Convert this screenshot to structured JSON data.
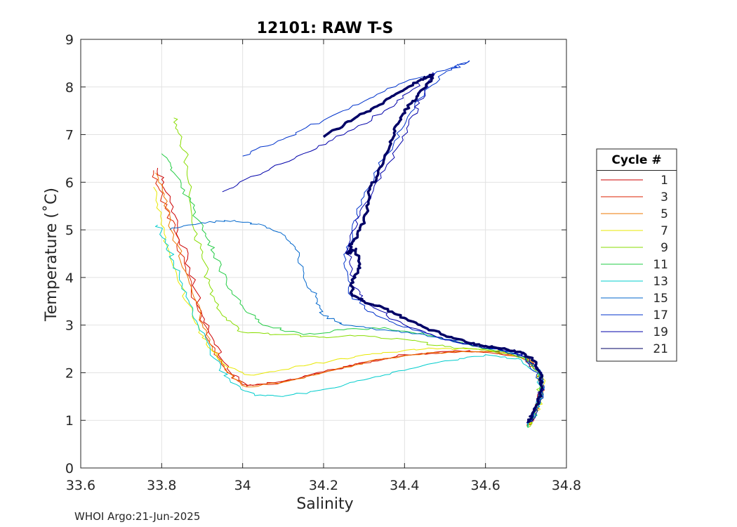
{
  "chart_data": {
    "type": "line",
    "title": "12101: RAW T-S",
    "xlabel": "Salinity",
    "ylabel": "Temperature (˚C)",
    "xlim": [
      33.6,
      34.8
    ],
    "ylim": [
      0,
      9
    ],
    "xticks": [
      33.6,
      33.8,
      34.0,
      34.2,
      34.4,
      34.6,
      34.8
    ],
    "xtick_labels": [
      "33.6",
      "33.8",
      "34",
      "34.2",
      "34.4",
      "34.6",
      "34.8"
    ],
    "yticks": [
      0,
      1,
      2,
      3,
      4,
      5,
      6,
      7,
      8,
      9
    ],
    "ytick_labels": [
      "0",
      "1",
      "2",
      "3",
      "4",
      "5",
      "6",
      "7",
      "8",
      "9"
    ],
    "grid": true,
    "legend_title": "Cycle #",
    "legend_position": "outside-right",
    "series": [
      {
        "name": "1",
        "color": "#cc0000",
        "width": 1,
        "points": [
          [
            33.79,
            6.3
          ],
          [
            33.81,
            5.8
          ],
          [
            33.84,
            5.0
          ],
          [
            33.87,
            4.2
          ],
          [
            33.9,
            3.2
          ],
          [
            33.93,
            2.6
          ],
          [
            33.97,
            2.0
          ],
          [
            34.01,
            1.72
          ],
          [
            34.1,
            1.82
          ],
          [
            34.2,
            2.02
          ],
          [
            34.3,
            2.22
          ],
          [
            34.4,
            2.38
          ],
          [
            34.52,
            2.45
          ],
          [
            34.62,
            2.44
          ],
          [
            34.7,
            2.3
          ],
          [
            34.735,
            2.0
          ],
          [
            34.74,
            1.7
          ],
          [
            34.725,
            1.3
          ],
          [
            34.71,
            0.9
          ]
        ]
      },
      {
        "name": "3",
        "color": "#dd2200",
        "width": 1,
        "points": [
          [
            33.78,
            6.25
          ],
          [
            33.8,
            5.7
          ],
          [
            33.83,
            5.0
          ],
          [
            33.86,
            4.1
          ],
          [
            33.89,
            3.3
          ],
          [
            33.92,
            2.6
          ],
          [
            33.96,
            2.05
          ],
          [
            34.0,
            1.75
          ],
          [
            34.08,
            1.76
          ],
          [
            34.18,
            1.98
          ],
          [
            34.3,
            2.2
          ],
          [
            34.4,
            2.36
          ],
          [
            34.5,
            2.43
          ],
          [
            34.6,
            2.43
          ],
          [
            34.69,
            2.32
          ],
          [
            34.73,
            2.05
          ],
          [
            34.74,
            1.7
          ],
          [
            34.72,
            1.2
          ],
          [
            34.705,
            0.9
          ]
        ]
      },
      {
        "name": "5",
        "color": "#ee7700",
        "width": 1,
        "points": [
          [
            33.785,
            6.2
          ],
          [
            33.805,
            5.7
          ],
          [
            33.83,
            4.9
          ],
          [
            33.865,
            4.0
          ],
          [
            33.895,
            3.2
          ],
          [
            33.925,
            2.55
          ],
          [
            33.965,
            2.0
          ],
          [
            34.01,
            1.7
          ],
          [
            34.1,
            1.8
          ],
          [
            34.22,
            2.05
          ],
          [
            34.33,
            2.28
          ],
          [
            34.45,
            2.4
          ],
          [
            34.55,
            2.44
          ],
          [
            34.64,
            2.42
          ],
          [
            34.71,
            2.25
          ],
          [
            34.74,
            1.9
          ],
          [
            34.735,
            1.5
          ],
          [
            34.715,
            1.0
          ],
          [
            34.705,
            0.88
          ]
        ]
      },
      {
        "name": "7",
        "color": "#e8e800",
        "width": 1,
        "points": [
          [
            33.78,
            5.9
          ],
          [
            33.8,
            5.2
          ],
          [
            33.82,
            4.5
          ],
          [
            33.85,
            3.8
          ],
          [
            33.88,
            3.1
          ],
          [
            33.91,
            2.6
          ],
          [
            33.95,
            2.2
          ],
          [
            34.02,
            1.95
          ],
          [
            34.12,
            2.1
          ],
          [
            34.22,
            2.25
          ],
          [
            34.32,
            2.4
          ],
          [
            34.45,
            2.5
          ],
          [
            34.55,
            2.5
          ],
          [
            34.64,
            2.45
          ],
          [
            34.71,
            2.28
          ],
          [
            34.74,
            1.9
          ],
          [
            34.735,
            1.4
          ],
          [
            34.715,
            1.0
          ],
          [
            34.705,
            0.88
          ]
        ]
      },
      {
        "name": "9",
        "color": "#88dd00",
        "width": 1,
        "points": [
          [
            33.83,
            7.35
          ],
          [
            33.845,
            7.0
          ],
          [
            33.86,
            6.5
          ],
          [
            33.87,
            5.8
          ],
          [
            33.88,
            5.0
          ],
          [
            33.9,
            4.4
          ],
          [
            33.92,
            3.8
          ],
          [
            33.95,
            3.2
          ],
          [
            34.0,
            2.85
          ],
          [
            34.1,
            2.8
          ],
          [
            34.2,
            2.75
          ],
          [
            34.3,
            2.78
          ],
          [
            34.4,
            2.7
          ],
          [
            34.5,
            2.55
          ],
          [
            34.6,
            2.48
          ],
          [
            34.69,
            2.35
          ],
          [
            34.73,
            2.05
          ],
          [
            34.735,
            1.6
          ],
          [
            34.72,
            1.1
          ],
          [
            34.705,
            0.85
          ]
        ]
      },
      {
        "name": "11",
        "color": "#22cc44",
        "width": 1,
        "points": [
          [
            33.8,
            6.6
          ],
          [
            33.83,
            6.2
          ],
          [
            33.87,
            5.6
          ],
          [
            33.9,
            5.0
          ],
          [
            33.93,
            4.5
          ],
          [
            33.96,
            3.9
          ],
          [
            34.0,
            3.4
          ],
          [
            34.05,
            3.0
          ],
          [
            34.15,
            2.8
          ],
          [
            34.25,
            2.9
          ],
          [
            34.35,
            2.95
          ],
          [
            34.45,
            2.8
          ],
          [
            34.55,
            2.6
          ],
          [
            34.64,
            2.45
          ],
          [
            34.7,
            2.3
          ],
          [
            34.735,
            2.0
          ],
          [
            34.74,
            1.6
          ],
          [
            34.725,
            1.2
          ],
          [
            34.705,
            0.85
          ]
        ]
      },
      {
        "name": "13",
        "color": "#00cccc",
        "width": 1,
        "points": [
          [
            33.79,
            5.1
          ],
          [
            33.81,
            4.8
          ],
          [
            33.83,
            4.3
          ],
          [
            33.86,
            3.6
          ],
          [
            33.89,
            3.0
          ],
          [
            33.93,
            2.3
          ],
          [
            33.97,
            1.8
          ],
          [
            34.03,
            1.52
          ],
          [
            34.1,
            1.5
          ],
          [
            34.2,
            1.65
          ],
          [
            34.3,
            1.85
          ],
          [
            34.4,
            2.05
          ],
          [
            34.5,
            2.25
          ],
          [
            34.6,
            2.38
          ],
          [
            34.68,
            2.3
          ],
          [
            34.73,
            2.0
          ],
          [
            34.74,
            1.6
          ],
          [
            34.725,
            1.2
          ],
          [
            34.705,
            0.85
          ]
        ]
      },
      {
        "name": "15",
        "color": "#0066cc",
        "width": 1,
        "points": [
          [
            33.82,
            5.0
          ],
          [
            33.9,
            5.15
          ],
          [
            33.98,
            5.2
          ],
          [
            34.05,
            5.1
          ],
          [
            34.1,
            4.9
          ],
          [
            34.13,
            4.6
          ],
          [
            34.15,
            4.0
          ],
          [
            34.18,
            3.6
          ],
          [
            34.2,
            3.2
          ],
          [
            34.25,
            3.0
          ],
          [
            34.35,
            2.9
          ],
          [
            34.45,
            2.8
          ],
          [
            34.55,
            2.65
          ],
          [
            34.64,
            2.48
          ],
          [
            34.7,
            2.32
          ],
          [
            34.735,
            2.0
          ],
          [
            34.74,
            1.6
          ],
          [
            34.72,
            1.1
          ],
          [
            34.705,
            0.9
          ]
        ]
      },
      {
        "name": "17",
        "color": "#0033cc",
        "width": 1,
        "points": [
          [
            34.0,
            6.55
          ],
          [
            34.1,
            6.9
          ],
          [
            34.2,
            7.3
          ],
          [
            34.3,
            7.7
          ],
          [
            34.4,
            8.1
          ],
          [
            34.5,
            8.35
          ],
          [
            34.56,
            8.55
          ],
          [
            34.5,
            8.3
          ],
          [
            34.45,
            7.9
          ],
          [
            34.4,
            7.2
          ],
          [
            34.35,
            6.5
          ],
          [
            34.3,
            5.7
          ],
          [
            34.27,
            5.0
          ],
          [
            34.25,
            4.3
          ],
          [
            34.27,
            3.6
          ],
          [
            34.33,
            3.2
          ],
          [
            34.42,
            2.9
          ],
          [
            34.52,
            2.65
          ],
          [
            34.62,
            2.5
          ],
          [
            34.69,
            2.35
          ],
          [
            34.73,
            2.0
          ],
          [
            34.74,
            1.6
          ],
          [
            34.72,
            1.1
          ],
          [
            34.705,
            0.95
          ]
        ]
      },
      {
        "name": "19",
        "color": "#0000aa",
        "width": 1,
        "points": [
          [
            33.95,
            5.8
          ],
          [
            34.05,
            6.2
          ],
          [
            34.15,
            6.6
          ],
          [
            34.25,
            7.0
          ],
          [
            34.35,
            7.5
          ],
          [
            34.42,
            7.95
          ],
          [
            34.47,
            8.3
          ],
          [
            34.45,
            7.9
          ],
          [
            34.42,
            7.4
          ],
          [
            34.38,
            6.7
          ],
          [
            34.33,
            6.0
          ],
          [
            34.29,
            5.3
          ],
          [
            34.26,
            4.6
          ],
          [
            34.27,
            3.9
          ],
          [
            34.3,
            3.5
          ],
          [
            34.38,
            3.1
          ],
          [
            34.48,
            2.75
          ],
          [
            34.58,
            2.55
          ],
          [
            34.66,
            2.45
          ],
          [
            34.71,
            2.3
          ],
          [
            34.74,
            1.9
          ],
          [
            34.735,
            1.4
          ],
          [
            34.715,
            1.0
          ],
          [
            34.705,
            0.95
          ]
        ]
      },
      {
        "name": "21",
        "color": "#000066",
        "width": 3.5,
        "points": [
          [
            34.2,
            6.95
          ],
          [
            34.25,
            7.2
          ],
          [
            34.3,
            7.45
          ],
          [
            34.35,
            7.7
          ],
          [
            34.4,
            7.95
          ],
          [
            34.44,
            8.15
          ],
          [
            34.47,
            8.25
          ],
          [
            34.46,
            8.1
          ],
          [
            34.43,
            7.8
          ],
          [
            34.4,
            7.5
          ],
          [
            34.38,
            7.2
          ],
          [
            34.37,
            6.9
          ],
          [
            34.35,
            6.5
          ],
          [
            34.33,
            6.1
          ],
          [
            34.31,
            5.8
          ],
          [
            34.31,
            5.4
          ],
          [
            34.29,
            5.0
          ],
          [
            34.27,
            4.7
          ],
          [
            34.26,
            4.5
          ],
          [
            34.28,
            4.6
          ],
          [
            34.29,
            4.2
          ],
          [
            34.27,
            3.95
          ],
          [
            34.27,
            3.65
          ],
          [
            34.3,
            3.5
          ],
          [
            34.35,
            3.35
          ],
          [
            34.4,
            3.15
          ],
          [
            34.45,
            2.95
          ],
          [
            34.5,
            2.78
          ],
          [
            34.55,
            2.65
          ],
          [
            34.6,
            2.56
          ],
          [
            34.65,
            2.5
          ],
          [
            34.69,
            2.42
          ],
          [
            34.72,
            2.25
          ],
          [
            34.735,
            2.0
          ],
          [
            34.74,
            1.7
          ],
          [
            34.73,
            1.4
          ],
          [
            34.715,
            1.1
          ],
          [
            34.705,
            0.95
          ]
        ]
      }
    ]
  },
  "footer": "WHOI Argo:21-Jun-2025"
}
